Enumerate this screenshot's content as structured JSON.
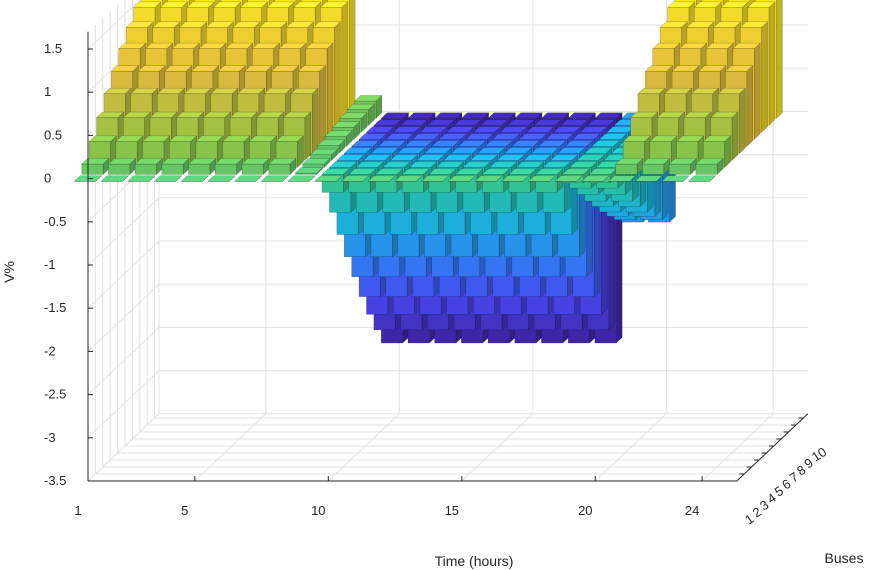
{
  "chart_data": {
    "type": "bar3",
    "title": "",
    "xlabel": "Time (hours)",
    "ylabel": "Buses",
    "zlabel": "V%",
    "x_ticks": [
      1,
      5,
      10,
      15,
      20,
      24
    ],
    "y_ticks": [
      1,
      2,
      3,
      4,
      5,
      6,
      7,
      8,
      9,
      10
    ],
    "z_ticks": [
      1.5,
      1,
      0.5,
      0,
      -0.5,
      -1,
      -1.5,
      -2,
      -2.5,
      -3,
      -3.5
    ],
    "xlim": [
      1,
      24
    ],
    "ylim": [
      1,
      10
    ],
    "zlim": [
      -3.5,
      1.5
    ],
    "grid": true,
    "hours": [
      1,
      2,
      3,
      4,
      5,
      6,
      7,
      8,
      9,
      10,
      11,
      12,
      13,
      14,
      15,
      16,
      17,
      18,
      19,
      20,
      21,
      22,
      23,
      24
    ],
    "buses": [
      1,
      2,
      3,
      4,
      5,
      6,
      7,
      8,
      9,
      10
    ],
    "bus10_deviation_by_hour": [
      1.5,
      1.5,
      1.5,
      1.5,
      1.5,
      1.5,
      1.5,
      1.5,
      0.2,
      -2.6,
      -2.6,
      -2.6,
      -2.6,
      -2.6,
      -2.6,
      -2.6,
      -2.6,
      -2.6,
      -1.2,
      -1.2,
      1.5,
      1.5,
      1.5,
      1.5
    ],
    "bus_profile_factor": [
      0.0,
      0.08,
      0.2,
      0.33,
      0.46,
      0.58,
      0.7,
      0.81,
      0.91,
      1.0
    ],
    "colormap": [
      "#3e26a8",
      "#4746eb",
      "#2f7ef4",
      "#1bb0d8",
      "#2ac39b",
      "#8cc445",
      "#e0b93c",
      "#f9e525"
    ]
  }
}
